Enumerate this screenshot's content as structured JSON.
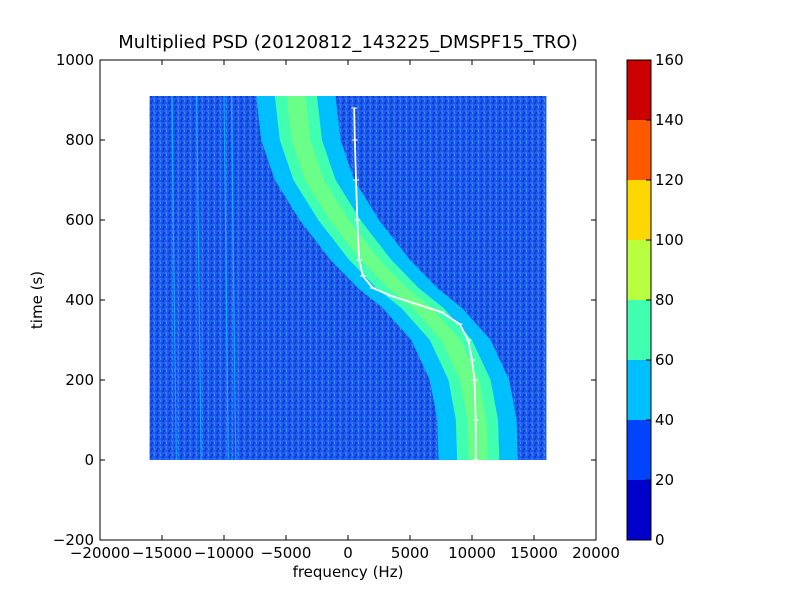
{
  "chart_data": {
    "type": "heatmap",
    "title": "Multiplied PSD (20120812_143225_DMSPF15_TRO)",
    "xlabel": "frequency (Hz)",
    "ylabel": "time (s)",
    "xlim": [
      -20000,
      20000
    ],
    "ylim": [
      -200,
      1000
    ],
    "x_ticks": [
      -20000,
      -15000,
      -10000,
      -5000,
      0,
      5000,
      10000,
      15000,
      20000
    ],
    "y_ticks": [
      -200,
      0,
      200,
      400,
      600,
      800,
      1000
    ],
    "data_extent": {
      "x": [
        -16000,
        16000
      ],
      "y": [
        0,
        910
      ]
    },
    "colorbar": {
      "ticks": [
        0,
        20,
        40,
        60,
        80,
        100,
        120,
        140,
        160
      ],
      "levels": [
        {
          "range": [
            0,
            20
          ],
          "color": "#0000cd"
        },
        {
          "range": [
            20,
            40
          ],
          "color": "#0044ff"
        },
        {
          "range": [
            40,
            60
          ],
          "color": "#00bfff"
        },
        {
          "range": [
            60,
            80
          ],
          "color": "#40ffb0"
        },
        {
          "range": [
            80,
            100
          ],
          "color": "#b8ff40"
        },
        {
          "range": [
            100,
            120
          ],
          "color": "#ffd700"
        },
        {
          "range": [
            120,
            140
          ],
          "color": "#ff5a00"
        },
        {
          "range": [
            140,
            160
          ],
          "color": "#cc0000"
        }
      ]
    },
    "background_level_color": "#1f5af0",
    "band": {
      "description_values": "Doppler-shifted signal band; center frequency vs time",
      "center": [
        {
          "t": 910,
          "f": -4200
        },
        {
          "t": 800,
          "f": -3800
        },
        {
          "t": 700,
          "f": -2700
        },
        {
          "t": 600,
          "f": -700
        },
        {
          "t": 500,
          "f": 1800
        },
        {
          "t": 430,
          "f": 4000
        },
        {
          "t": 380,
          "f": 6000
        },
        {
          "t": 300,
          "f": 8300
        },
        {
          "t": 200,
          "f": 9800
        },
        {
          "t": 100,
          "f": 10400
        },
        {
          "t": 0,
          "f": 10500
        }
      ],
      "outer_half_width": 3200,
      "inner_half_width": 1700
    },
    "vertical_lines": [
      {
        "f": -14200
      },
      {
        "f": -12200
      },
      {
        "f": -10000
      },
      {
        "f": -9400
      }
    ],
    "trace": {
      "color": "#ffffff",
      "points": [
        {
          "t": 880,
          "f": 500
        },
        {
          "t": 800,
          "f": 550
        },
        {
          "t": 700,
          "f": 650
        },
        {
          "t": 600,
          "f": 750
        },
        {
          "t": 500,
          "f": 900
        },
        {
          "t": 460,
          "f": 1200
        },
        {
          "t": 430,
          "f": 2000
        },
        {
          "t": 410,
          "f": 3500
        },
        {
          "t": 390,
          "f": 5500
        },
        {
          "t": 370,
          "f": 7500
        },
        {
          "t": 340,
          "f": 9000
        },
        {
          "t": 300,
          "f": 9700
        },
        {
          "t": 250,
          "f": 10000
        },
        {
          "t": 200,
          "f": 10200
        },
        {
          "t": 100,
          "f": 10300
        },
        {
          "t": 0,
          "f": 10300
        }
      ]
    }
  }
}
